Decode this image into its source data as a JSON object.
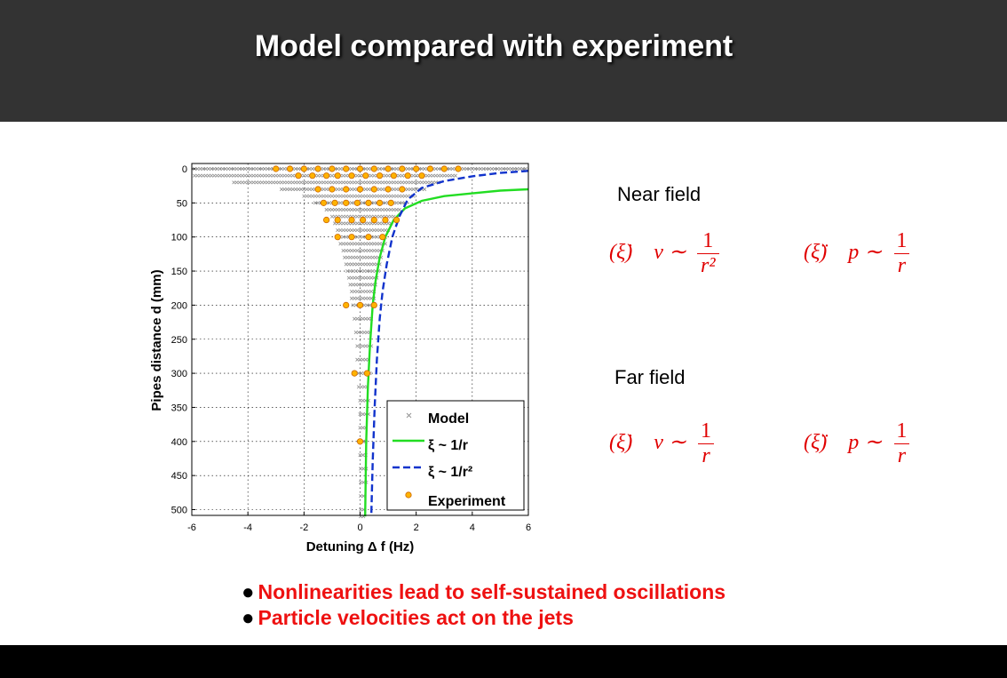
{
  "title": "Model compared with experiment",
  "sections": {
    "near_field": "Near field",
    "far_field": "Far field"
  },
  "equations": {
    "near_left_label": "(ξ̇)",
    "near_left_lhs": "v ∼",
    "near_left_num": "1",
    "near_left_den": "r²",
    "near_right_label": "(ξ̈)",
    "near_right_lhs": "p ∼",
    "near_right_num": "1",
    "near_right_den": "r",
    "far_left_label": "(ξ̇)",
    "far_left_lhs": "v ∼",
    "far_left_num": "1",
    "far_left_den": "r",
    "far_right_label": "(ξ̈)",
    "far_right_lhs": "p ∼",
    "far_right_num": "1",
    "far_right_den": "r"
  },
  "bullets": [
    "Nonlinearities lead to self-sustained oscillations",
    "Particle velocities act on the jets"
  ],
  "colors": {
    "header": "#333333",
    "bullet_text": "#ee1111",
    "equation": "#e00000",
    "green_series": "#22dd22",
    "blue_series": "#1133cc",
    "experiment_fill": "#ffb300",
    "experiment_edge": "#cc6600",
    "model_marker": "#909090"
  },
  "chart_data": {
    "type": "scatter",
    "xlabel": "Detuning Δ f (Hz)",
    "ylabel": "Pipes distance d (mm)",
    "xlim": [
      -6,
      6
    ],
    "ylim": [
      0,
      510
    ],
    "y_inverted": true,
    "grid": true,
    "x_ticks": [
      -6,
      -4,
      -2,
      0,
      2,
      4,
      6
    ],
    "y_ticks": [
      0,
      50,
      100,
      150,
      200,
      250,
      300,
      350,
      400,
      450,
      500
    ],
    "legend_position": "bottom-right",
    "series": [
      {
        "name": "Model",
        "type": "scatter",
        "marker": "x",
        "rows": [
          {
            "d": 0,
            "x_min": -5.9,
            "x_max": 5.9
          },
          {
            "d": 10,
            "x_min": -5.9,
            "x_max": 3.4
          },
          {
            "d": 20,
            "x_min": -4.5,
            "x_max": 2.8
          },
          {
            "d": 30,
            "x_min": -2.8,
            "x_max": 2.3
          },
          {
            "d": 40,
            "x_min": -2.0,
            "x_max": 1.9
          },
          {
            "d": 50,
            "x_min": -1.6,
            "x_max": 1.6
          },
          {
            "d": 60,
            "x_min": -1.2,
            "x_max": 1.4
          },
          {
            "d": 70,
            "x_min": -1.0,
            "x_max": 1.2
          },
          {
            "d": 80,
            "x_min": -0.9,
            "x_max": 1.1
          },
          {
            "d": 90,
            "x_min": -0.8,
            "x_max": 1.0
          },
          {
            "d": 100,
            "x_min": -0.8,
            "x_max": 0.9
          },
          {
            "d": 110,
            "x_min": -0.7,
            "x_max": 0.9
          },
          {
            "d": 120,
            "x_min": -0.6,
            "x_max": 0.8
          },
          {
            "d": 130,
            "x_min": -0.55,
            "x_max": 0.75
          },
          {
            "d": 140,
            "x_min": -0.5,
            "x_max": 0.7
          },
          {
            "d": 150,
            "x_min": -0.45,
            "x_max": 0.65
          },
          {
            "d": 160,
            "x_min": -0.4,
            "x_max": 0.6
          },
          {
            "d": 170,
            "x_min": -0.35,
            "x_max": 0.55
          },
          {
            "d": 180,
            "x_min": -0.3,
            "x_max": 0.55
          },
          {
            "d": 190,
            "x_min": -0.3,
            "x_max": 0.5
          },
          {
            "d": 200,
            "x_min": -0.25,
            "x_max": 0.5
          },
          {
            "d": 220,
            "x_min": -0.2,
            "x_max": 0.45
          },
          {
            "d": 240,
            "x_min": -0.15,
            "x_max": 0.4
          },
          {
            "d": 260,
            "x_min": -0.1,
            "x_max": 0.4
          },
          {
            "d": 280,
            "x_min": -0.1,
            "x_max": 0.35
          },
          {
            "d": 300,
            "x_min": -0.05,
            "x_max": 0.35
          },
          {
            "d": 320,
            "x_min": -0.05,
            "x_max": 0.3
          },
          {
            "d": 340,
            "x_min": 0.0,
            "x_max": 0.3
          },
          {
            "d": 360,
            "x_min": 0.0,
            "x_max": 0.3
          },
          {
            "d": 380,
            "x_min": 0.0,
            "x_max": 0.25
          },
          {
            "d": 400,
            "x_min": 0.0,
            "x_max": 0.25
          },
          {
            "d": 420,
            "x_min": 0.0,
            "x_max": 0.25
          },
          {
            "d": 440,
            "x_min": 0.02,
            "x_max": 0.22
          },
          {
            "d": 460,
            "x_min": 0.02,
            "x_max": 0.22
          },
          {
            "d": 480,
            "x_min": 0.02,
            "x_max": 0.2
          },
          {
            "d": 500,
            "x_min": 0.02,
            "x_max": 0.2
          },
          {
            "d": 510,
            "x_min": 0.02,
            "x_max": 0.2
          }
        ]
      },
      {
        "name": "ξ ~ 1/r",
        "type": "line",
        "style": "solid",
        "points": [
          [
            6.0,
            30
          ],
          [
            5.0,
            32
          ],
          [
            4.0,
            36
          ],
          [
            3.0,
            40
          ],
          [
            2.2,
            47
          ],
          [
            1.6,
            58
          ],
          [
            1.2,
            75
          ],
          [
            0.9,
            100
          ],
          [
            0.7,
            130
          ],
          [
            0.55,
            165
          ],
          [
            0.45,
            200
          ],
          [
            0.35,
            260
          ],
          [
            0.28,
            320
          ],
          [
            0.22,
            400
          ],
          [
            0.18,
            510
          ]
        ]
      },
      {
        "name": "ξ ~ 1/r²",
        "type": "line",
        "style": "dashed",
        "points": [
          [
            6.0,
            3
          ],
          [
            5.0,
            6
          ],
          [
            4.0,
            11
          ],
          [
            3.0,
            18
          ],
          [
            2.2,
            28
          ],
          [
            1.7,
            45
          ],
          [
            1.4,
            70
          ],
          [
            1.15,
            100
          ],
          [
            0.95,
            140
          ],
          [
            0.8,
            180
          ],
          [
            0.7,
            220
          ],
          [
            0.6,
            280
          ],
          [
            0.52,
            350
          ],
          [
            0.45,
            430
          ],
          [
            0.4,
            510
          ]
        ]
      },
      {
        "name": "Experiment",
        "type": "scatter",
        "marker": "circle",
        "points": [
          [
            -3.0,
            0
          ],
          [
            -2.5,
            0
          ],
          [
            -2.0,
            0
          ],
          [
            -1.5,
            0
          ],
          [
            -1.0,
            0
          ],
          [
            -0.5,
            0
          ],
          [
            0.0,
            0
          ],
          [
            0.5,
            0
          ],
          [
            1.0,
            0
          ],
          [
            1.5,
            0
          ],
          [
            2.0,
            0
          ],
          [
            2.5,
            0
          ],
          [
            3.0,
            0
          ],
          [
            3.5,
            0
          ],
          [
            -2.2,
            10
          ],
          [
            -1.7,
            10
          ],
          [
            -1.2,
            10
          ],
          [
            -0.8,
            10
          ],
          [
            -0.3,
            10
          ],
          [
            0.2,
            10
          ],
          [
            0.7,
            10
          ],
          [
            1.2,
            10
          ],
          [
            1.7,
            10
          ],
          [
            2.2,
            10
          ],
          [
            -1.5,
            30
          ],
          [
            -1.0,
            30
          ],
          [
            -0.5,
            30
          ],
          [
            0.0,
            30
          ],
          [
            0.5,
            30
          ],
          [
            1.0,
            30
          ],
          [
            1.5,
            30
          ],
          [
            -1.3,
            50
          ],
          [
            -0.9,
            50
          ],
          [
            -0.5,
            50
          ],
          [
            -0.1,
            50
          ],
          [
            0.3,
            50
          ],
          [
            0.7,
            50
          ],
          [
            1.1,
            50
          ],
          [
            -1.2,
            75
          ],
          [
            -0.8,
            75
          ],
          [
            -0.3,
            75
          ],
          [
            0.1,
            75
          ],
          [
            0.5,
            75
          ],
          [
            0.9,
            75
          ],
          [
            1.3,
            75
          ],
          [
            -0.8,
            100
          ],
          [
            -0.3,
            100
          ],
          [
            0.3,
            100
          ],
          [
            0.8,
            100
          ],
          [
            -0.5,
            200
          ],
          [
            0.0,
            200
          ],
          [
            0.5,
            200
          ],
          [
            -0.2,
            300
          ],
          [
            0.25,
            300
          ],
          [
            0.0,
            400
          ]
        ]
      }
    ]
  }
}
